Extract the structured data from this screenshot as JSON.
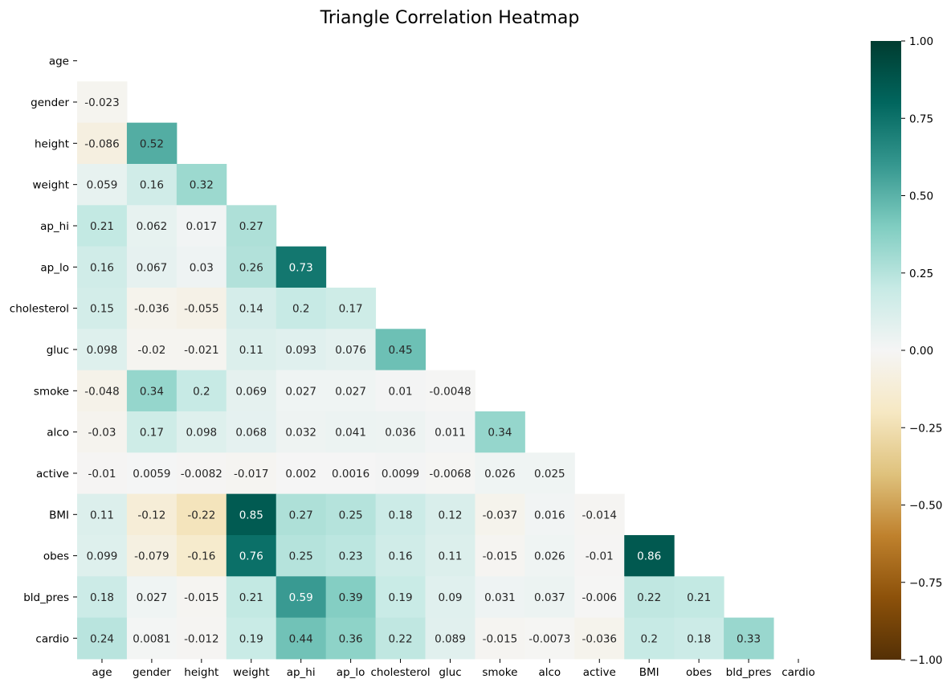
{
  "chart_data": {
    "type": "heatmap",
    "title": "Triangle Correlation Heatmap",
    "mask": "upper-triangle-including-diagonal",
    "labels": [
      "age",
      "gender",
      "height",
      "weight",
      "ap_hi",
      "ap_lo",
      "cholesterol",
      "gluc",
      "smoke",
      "alco",
      "active",
      "BMI",
      "obes",
      "bld_pres",
      "cardio"
    ],
    "rows": [
      [],
      [
        "-0.023"
      ],
      [
        "-0.086",
        "0.52"
      ],
      [
        "0.059",
        "0.16",
        "0.32"
      ],
      [
        "0.21",
        "0.062",
        "0.017",
        "0.27"
      ],
      [
        "0.16",
        "0.067",
        "0.03",
        "0.26",
        "0.73"
      ],
      [
        "0.15",
        "-0.036",
        "-0.055",
        "0.14",
        "0.2",
        "0.17"
      ],
      [
        "0.098",
        "-0.02",
        "-0.021",
        "0.11",
        "0.093",
        "0.076",
        "0.45"
      ],
      [
        "-0.048",
        "0.34",
        "0.2",
        "0.069",
        "0.027",
        "0.027",
        "0.01",
        "-0.0048"
      ],
      [
        "-0.03",
        "0.17",
        "0.098",
        "0.068",
        "0.032",
        "0.041",
        "0.036",
        "0.011",
        "0.34"
      ],
      [
        "-0.01",
        "0.0059",
        "-0.0082",
        "-0.017",
        "0.002",
        "0.0016",
        "0.0099",
        "-0.0068",
        "0.026",
        "0.025"
      ],
      [
        "0.11",
        "-0.12",
        "-0.22",
        "0.85",
        "0.27",
        "0.25",
        "0.18",
        "0.12",
        "-0.037",
        "0.016",
        "-0.014"
      ],
      [
        "0.099",
        "-0.079",
        "-0.16",
        "0.76",
        "0.25",
        "0.23",
        "0.16",
        "0.11",
        "-0.015",
        "0.026",
        "-0.01",
        "0.86"
      ],
      [
        "0.18",
        "0.027",
        "-0.015",
        "0.21",
        "0.59",
        "0.39",
        "0.19",
        "0.09",
        "0.031",
        "0.037",
        "-0.006",
        "0.22",
        "0.21"
      ],
      [
        "0.24",
        "0.0081",
        "-0.012",
        "0.19",
        "0.44",
        "0.36",
        "0.22",
        "0.089",
        "-0.015",
        "-0.0073",
        "-0.036",
        "0.2",
        "0.18",
        "0.33"
      ]
    ],
    "colorbar": {
      "colormap": "BrBG",
      "vmin": -1.0,
      "vmax": 1.0,
      "ticks": [
        "−1.00",
        "−0.75",
        "−0.50",
        "−0.25",
        "0.00",
        "0.25",
        "0.50",
        "0.75",
        "1.00"
      ]
    }
  }
}
